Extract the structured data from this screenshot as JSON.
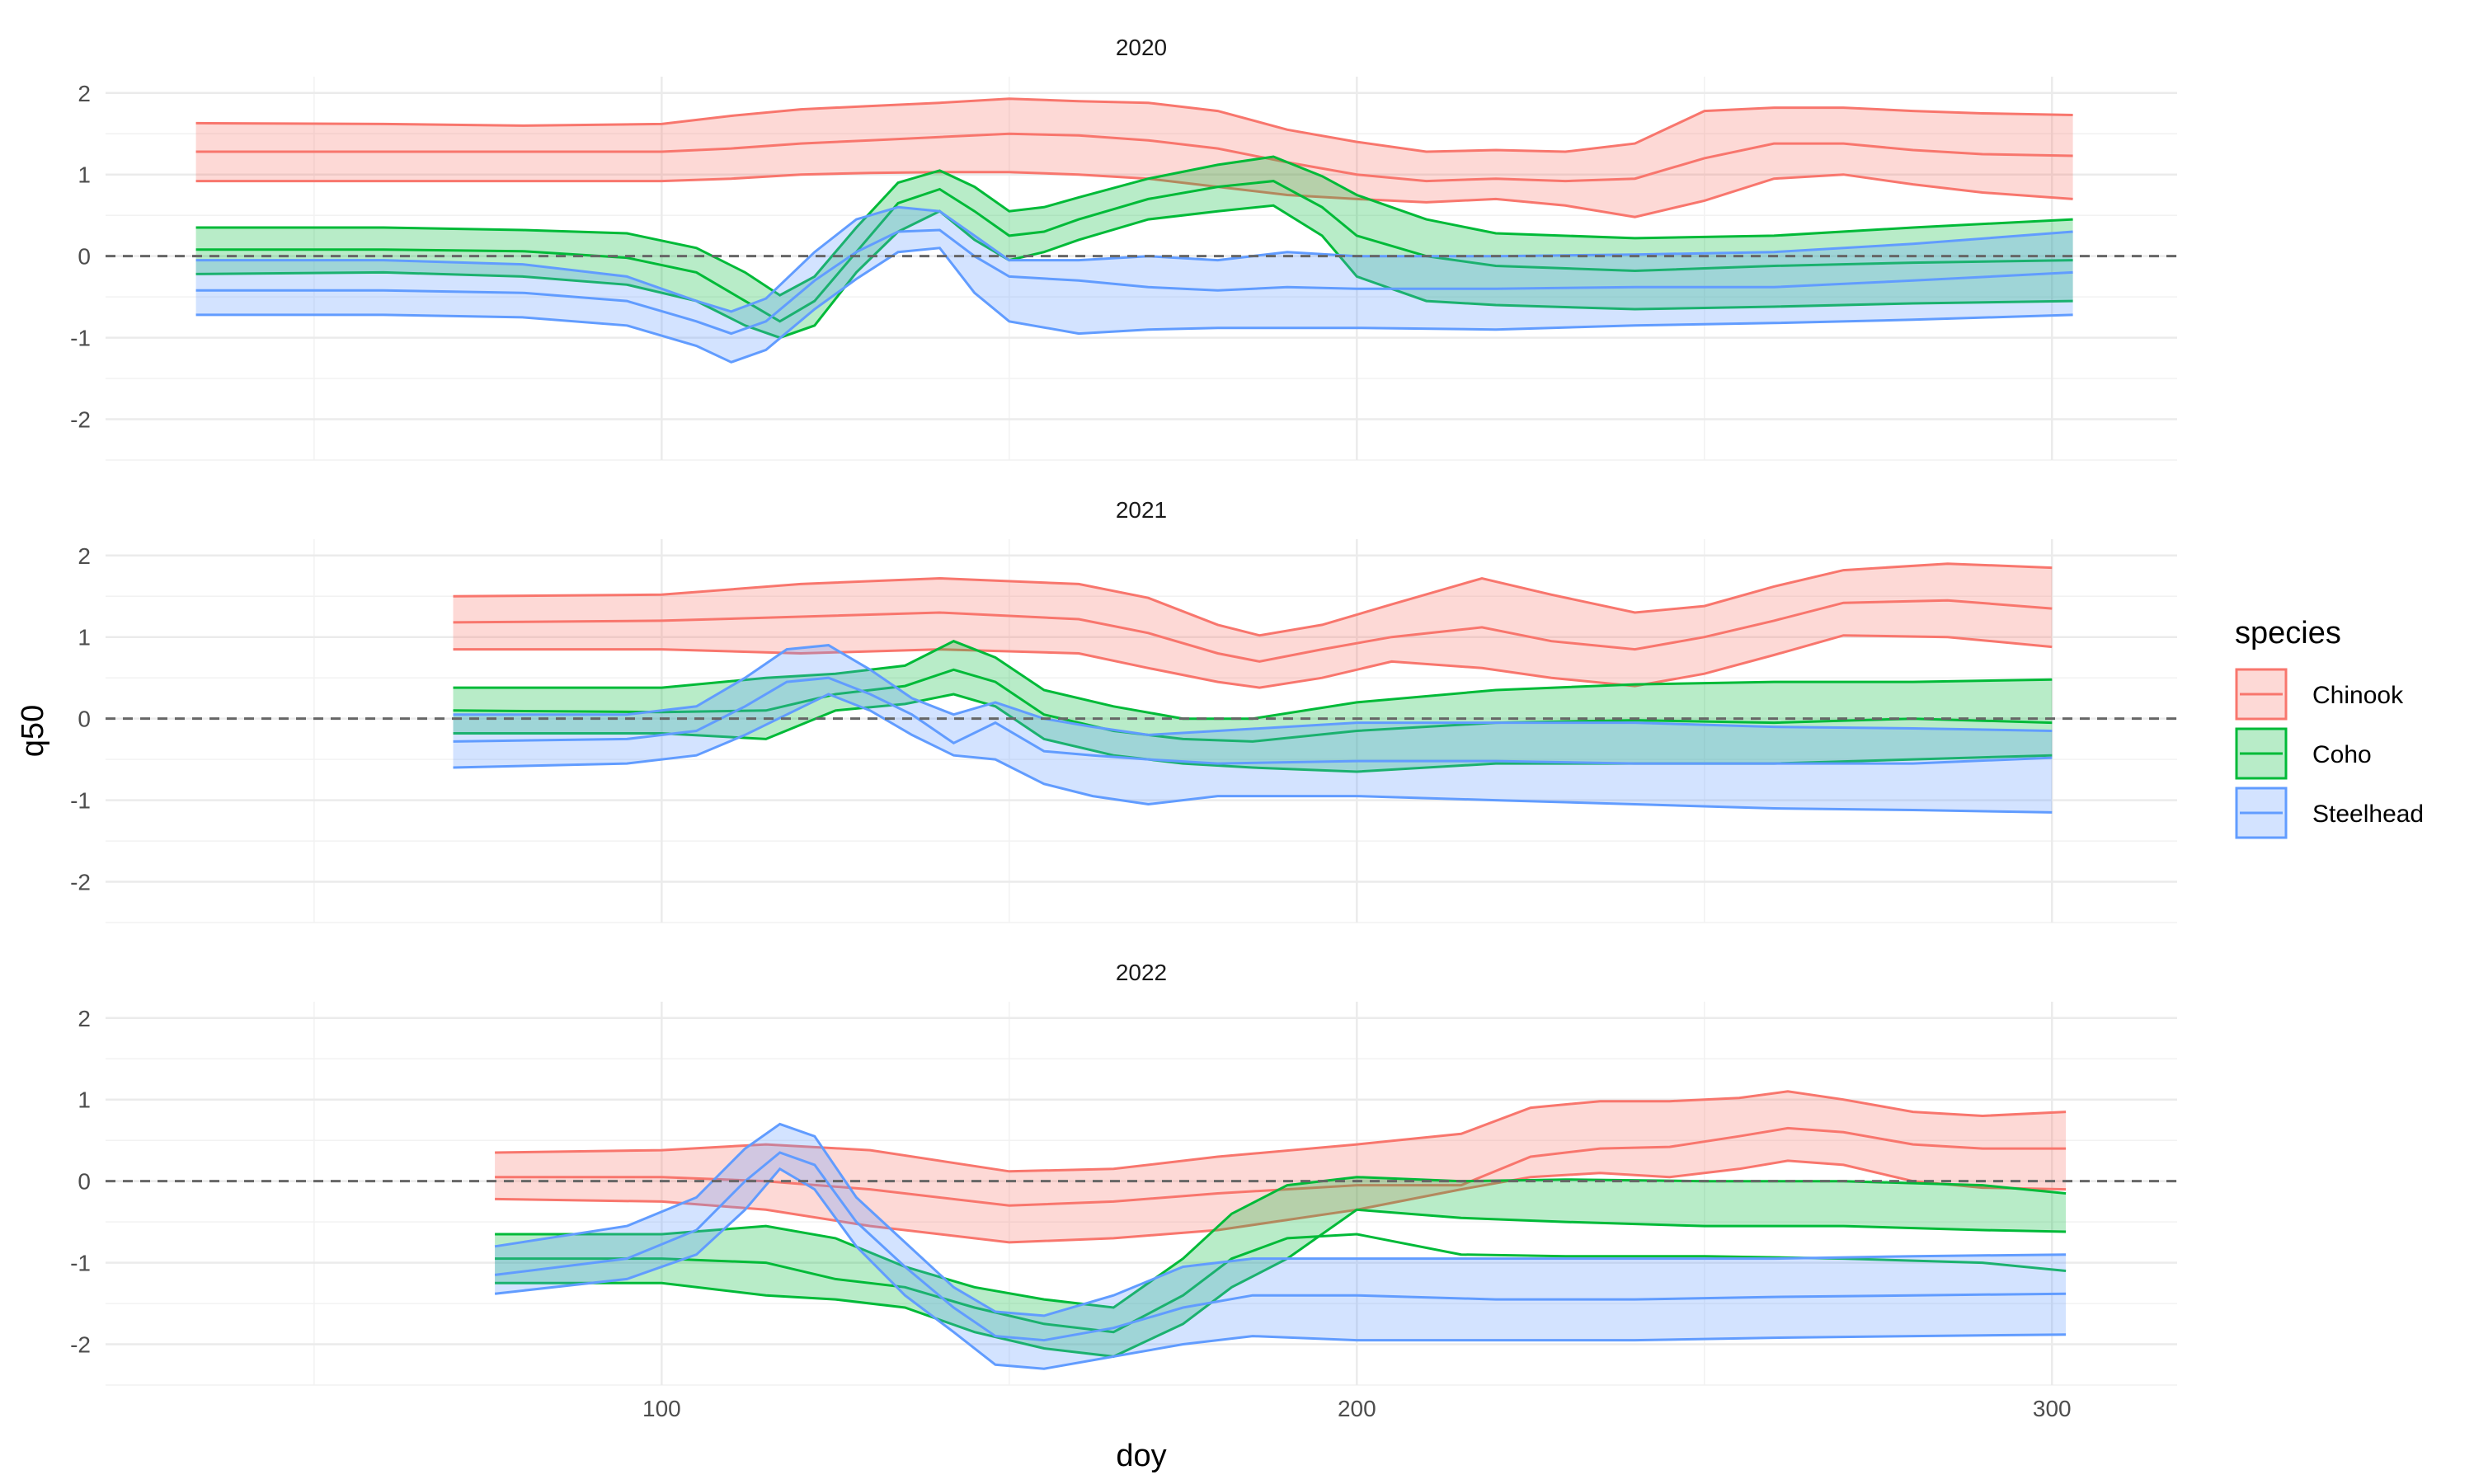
{
  "chart_data": {
    "type": "area",
    "xlabel": "doy",
    "ylabel": "q50",
    "xlim": [
      20,
      318
    ],
    "ylim": [
      -2.5,
      2.2
    ],
    "x_ticks": [
      100,
      200,
      300
    ],
    "y_ticks": [
      2,
      1,
      0,
      -1,
      -2
    ],
    "reference_line": 0,
    "legend": {
      "title": "species",
      "position": "right",
      "entries": [
        "Chinook",
        "Coho",
        "Steelhead"
      ]
    },
    "colors": {
      "Chinook": "#F8766D",
      "Coho": "#00BA38",
      "Steelhead": "#619CFF"
    },
    "panels": [
      {
        "title": "2020",
        "series": [
          {
            "name": "Chinook",
            "x": [
              33,
              60,
              80,
              100,
              110,
              120,
              130,
              140,
              150,
              160,
              170,
              180,
              190,
              200,
              210,
              220,
              230,
              240,
              250,
              260,
              270,
              280,
              290,
              303
            ],
            "mid": [
              1.28,
              1.28,
              1.28,
              1.28,
              1.32,
              1.38,
              1.42,
              1.46,
              1.5,
              1.48,
              1.42,
              1.32,
              1.15,
              1.0,
              0.92,
              0.95,
              0.92,
              0.95,
              1.2,
              1.38,
              1.38,
              1.3,
              1.25,
              1.23
            ],
            "lower": [
              0.92,
              0.92,
              0.92,
              0.92,
              0.95,
              1.0,
              1.02,
              1.03,
              1.03,
              1.0,
              0.95,
              0.85,
              0.75,
              0.7,
              0.66,
              0.7,
              0.62,
              0.48,
              0.68,
              0.95,
              1.0,
              0.88,
              0.78,
              0.7
            ],
            "upper": [
              1.63,
              1.62,
              1.6,
              1.62,
              1.72,
              1.8,
              1.84,
              1.88,
              1.93,
              1.9,
              1.88,
              1.78,
              1.55,
              1.4,
              1.28,
              1.3,
              1.28,
              1.38,
              1.78,
              1.82,
              1.82,
              1.78,
              1.75,
              1.73
            ]
          },
          {
            "name": "Coho",
            "x": [
              33,
              60,
              80,
              95,
              105,
              112,
              117,
              122,
              128,
              134,
              140,
              145,
              150,
              155,
              160,
              170,
              180,
              188,
              195,
              200,
              210,
              220,
              240,
              260,
              280,
              303
            ],
            "mid": [
              0.08,
              0.08,
              0.06,
              -0.02,
              -0.2,
              -0.55,
              -0.8,
              -0.55,
              0.05,
              0.65,
              0.82,
              0.55,
              0.25,
              0.3,
              0.45,
              0.7,
              0.85,
              0.92,
              0.6,
              0.25,
              0.0,
              -0.12,
              -0.18,
              -0.12,
              -0.08,
              -0.05
            ],
            "lower": [
              -0.22,
              -0.2,
              -0.25,
              -0.35,
              -0.55,
              -0.85,
              -1.0,
              -0.85,
              -0.2,
              0.3,
              0.55,
              0.2,
              -0.05,
              0.05,
              0.2,
              0.45,
              0.55,
              0.62,
              0.25,
              -0.25,
              -0.55,
              -0.6,
              -0.65,
              -0.62,
              -0.58,
              -0.55
            ],
            "upper": [
              0.35,
              0.35,
              0.32,
              0.28,
              0.1,
              -0.2,
              -0.48,
              -0.25,
              0.35,
              0.9,
              1.05,
              0.85,
              0.55,
              0.6,
              0.72,
              0.95,
              1.12,
              1.22,
              0.98,
              0.75,
              0.45,
              0.28,
              0.22,
              0.25,
              0.35,
              0.45
            ]
          },
          {
            "name": "Steelhead",
            "x": [
              33,
              60,
              80,
              95,
              105,
              110,
              115,
              122,
              128,
              134,
              140,
              145,
              150,
              160,
              170,
              180,
              190,
              200,
              220,
              240,
              260,
              280,
              303
            ],
            "mid": [
              -0.42,
              -0.42,
              -0.45,
              -0.55,
              -0.8,
              -0.95,
              -0.8,
              -0.3,
              0.05,
              0.3,
              0.32,
              0.0,
              -0.25,
              -0.3,
              -0.38,
              -0.42,
              -0.38,
              -0.4,
              -0.4,
              -0.38,
              -0.38,
              -0.3,
              -0.2
            ],
            "lower": [
              -0.72,
              -0.72,
              -0.75,
              -0.85,
              -1.1,
              -1.3,
              -1.15,
              -0.65,
              -0.28,
              0.05,
              0.1,
              -0.45,
              -0.8,
              -0.95,
              -0.9,
              -0.88,
              -0.88,
              -0.88,
              -0.9,
              -0.85,
              -0.82,
              -0.78,
              -0.72
            ],
            "upper": [
              -0.05,
              -0.05,
              -0.1,
              -0.25,
              -0.55,
              -0.68,
              -0.52,
              0.05,
              0.45,
              0.6,
              0.55,
              0.25,
              -0.05,
              -0.05,
              0.0,
              -0.05,
              0.05,
              0.0,
              0.0,
              0.02,
              0.05,
              0.15,
              0.3
            ]
          }
        ]
      },
      {
        "title": "2021",
        "series": [
          {
            "name": "Chinook",
            "x": [
              70,
              100,
              120,
              140,
              160,
              170,
              180,
              186,
              195,
              205,
              218,
              228,
              240,
              250,
              260,
              270,
              285,
              300
            ],
            "mid": [
              1.18,
              1.2,
              1.25,
              1.3,
              1.22,
              1.05,
              0.8,
              0.7,
              0.85,
              1.0,
              1.12,
              0.95,
              0.85,
              1.0,
              1.2,
              1.42,
              1.45,
              1.35
            ],
            "lower": [
              0.85,
              0.85,
              0.8,
              0.85,
              0.8,
              0.62,
              0.45,
              0.38,
              0.5,
              0.7,
              0.62,
              0.5,
              0.4,
              0.55,
              0.78,
              1.02,
              1.0,
              0.88
            ],
            "upper": [
              1.5,
              1.52,
              1.65,
              1.72,
              1.65,
              1.48,
              1.15,
              1.02,
              1.15,
              1.4,
              1.72,
              1.52,
              1.3,
              1.38,
              1.62,
              1.82,
              1.9,
              1.85
            ]
          },
          {
            "name": "Coho",
            "x": [
              70,
              100,
              115,
              125,
              135,
              142,
              148,
              155,
              165,
              175,
              185,
              200,
              220,
              240,
              260,
              280,
              300
            ],
            "mid": [
              0.1,
              0.08,
              0.1,
              0.3,
              0.4,
              0.6,
              0.45,
              0.05,
              -0.15,
              -0.25,
              -0.28,
              -0.15,
              -0.05,
              -0.02,
              -0.05,
              0.0,
              -0.05
            ],
            "lower": [
              -0.18,
              -0.18,
              -0.25,
              0.1,
              0.18,
              0.3,
              0.15,
              -0.25,
              -0.45,
              -0.55,
              -0.6,
              -0.65,
              -0.55,
              -0.55,
              -0.55,
              -0.5,
              -0.45
            ],
            "upper": [
              0.38,
              0.38,
              0.5,
              0.55,
              0.65,
              0.95,
              0.75,
              0.35,
              0.15,
              0.0,
              0.0,
              0.2,
              0.35,
              0.42,
              0.45,
              0.45,
              0.48
            ]
          },
          {
            "name": "Steelhead",
            "x": [
              70,
              95,
              105,
              112,
              118,
              124,
              130,
              136,
              142,
              148,
              155,
              162,
              170,
              180,
              200,
              220,
              240,
              260,
              280,
              300
            ],
            "mid": [
              -0.28,
              -0.25,
              -0.15,
              0.15,
              0.45,
              0.5,
              0.3,
              0.05,
              -0.3,
              -0.05,
              -0.4,
              -0.45,
              -0.5,
              -0.55,
              -0.52,
              -0.52,
              -0.55,
              -0.55,
              -0.55,
              -0.48
            ],
            "lower": [
              -0.6,
              -0.55,
              -0.45,
              -0.2,
              0.05,
              0.3,
              0.1,
              -0.2,
              -0.45,
              -0.5,
              -0.8,
              -0.95,
              -1.05,
              -0.95,
              -0.95,
              -1.0,
              -1.05,
              -1.1,
              -1.12,
              -1.15
            ],
            "upper": [
              0.05,
              0.05,
              0.15,
              0.5,
              0.85,
              0.9,
              0.6,
              0.25,
              0.05,
              0.2,
              0.0,
              -0.1,
              -0.2,
              -0.15,
              -0.05,
              -0.05,
              -0.05,
              -0.1,
              -0.12,
              -0.15
            ]
          }
        ]
      },
      {
        "title": "2022",
        "series": [
          {
            "name": "Chinook",
            "x": [
              76,
              100,
              115,
              130,
              150,
              165,
              180,
              200,
              215,
              225,
              235,
              245,
              255,
              262,
              270,
              280,
              290,
              302
            ],
            "mid": [
              0.05,
              0.05,
              0.0,
              -0.1,
              -0.3,
              -0.25,
              -0.15,
              -0.05,
              -0.05,
              0.3,
              0.4,
              0.42,
              0.55,
              0.65,
              0.6,
              0.45,
              0.4,
              0.4
            ],
            "lower": [
              -0.22,
              -0.25,
              -0.35,
              -0.55,
              -0.75,
              -0.7,
              -0.6,
              -0.35,
              -0.1,
              0.05,
              0.1,
              0.05,
              0.15,
              0.25,
              0.2,
              0.0,
              -0.08,
              -0.1
            ],
            "upper": [
              0.35,
              0.38,
              0.45,
              0.38,
              0.12,
              0.15,
              0.3,
              0.45,
              0.58,
              0.9,
              0.98,
              0.98,
              1.02,
              1.1,
              1.0,
              0.85,
              0.8,
              0.85
            ]
          },
          {
            "name": "Coho",
            "x": [
              76,
              100,
              115,
              125,
              135,
              145,
              155,
              165,
              175,
              182,
              190,
              200,
              215,
              230,
              250,
              270,
              290,
              302
            ],
            "mid": [
              -0.95,
              -0.95,
              -1.0,
              -1.2,
              -1.3,
              -1.55,
              -1.75,
              -1.85,
              -1.4,
              -0.95,
              -0.7,
              -0.65,
              -0.9,
              -0.92,
              -0.92,
              -0.95,
              -1.0,
              -1.1
            ],
            "lower": [
              -1.25,
              -1.25,
              -1.4,
              -1.45,
              -1.55,
              -1.85,
              -2.05,
              -2.15,
              -1.75,
              -1.3,
              -0.95,
              -0.35,
              -0.45,
              -0.5,
              -0.55,
              -0.55,
              -0.6,
              -0.62
            ],
            "upper": [
              -0.65,
              -0.65,
              -0.55,
              -0.7,
              -1.05,
              -1.3,
              -1.45,
              -1.55,
              -0.95,
              -0.4,
              -0.05,
              0.05,
              0.0,
              0.02,
              0.0,
              0.0,
              -0.05,
              -0.15
            ]
          },
          {
            "name": "Steelhead",
            "x": [
              76,
              95,
              105,
              112,
              117,
              122,
              128,
              135,
              142,
              148,
              155,
              165,
              175,
              185,
              200,
              220,
              240,
              260,
              280,
              302
            ],
            "mid": [
              -1.15,
              -0.95,
              -0.6,
              0.0,
              0.35,
              0.2,
              -0.5,
              -1.05,
              -1.55,
              -1.9,
              -1.95,
              -1.8,
              -1.55,
              -1.4,
              -1.4,
              -1.45,
              -1.45,
              -1.42,
              -1.4,
              -1.38
            ],
            "lower": [
              -1.38,
              -1.2,
              -0.9,
              -0.35,
              0.15,
              -0.1,
              -0.8,
              -1.4,
              -1.85,
              -2.25,
              -2.3,
              -2.15,
              -2.0,
              -1.9,
              -1.95,
              -1.95,
              -1.95,
              -1.92,
              -1.9,
              -1.88
            ],
            "upper": [
              -0.8,
              -0.55,
              -0.2,
              0.4,
              0.7,
              0.55,
              -0.2,
              -0.75,
              -1.3,
              -1.6,
              -1.65,
              -1.4,
              -1.05,
              -0.95,
              -0.95,
              -0.95,
              -0.95,
              -0.95,
              -0.92,
              -0.9
            ]
          }
        ]
      }
    ]
  }
}
